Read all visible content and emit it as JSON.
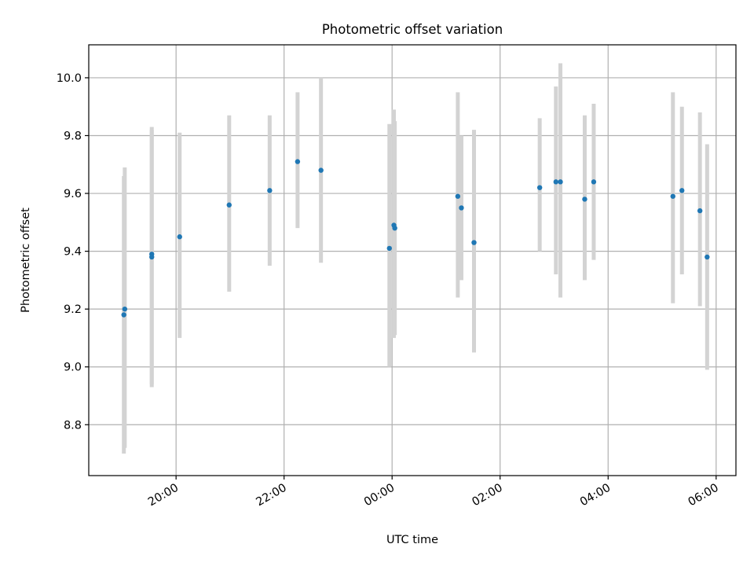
{
  "chart_data": {
    "type": "scatter",
    "title": "Photometric offset variation",
    "xlabel": "UTC time",
    "ylabel": "Photometric offset",
    "x_axis": "time (UTC), evening to next morning",
    "xlim": [
      "18:23",
      "06:22"
    ],
    "ylim": [
      8.624,
      10.114
    ],
    "grid": true,
    "x_ticks": [
      "20:00",
      "22:00",
      "00:00",
      "02:00",
      "04:00",
      "06:00"
    ],
    "y_ticks": [
      "8.8",
      "9.0",
      "9.2",
      "9.4",
      "9.6",
      "9.8",
      "10.0"
    ],
    "colors": {
      "points": "#1f77b4",
      "errorbars": "#d3d3d3",
      "grid": "#b0b0b0"
    },
    "series": [
      {
        "points": [
          {
            "x": "19:03",
            "y": 9.2,
            "err_low": 8.72,
            "err_high": 9.69
          },
          {
            "x": "19:02",
            "y": 9.18,
            "err_low": 8.7,
            "err_high": 9.66
          },
          {
            "x": "19:33",
            "y": 9.39,
            "err_low": 8.94,
            "err_high": 9.83
          },
          {
            "x": "19:33",
            "y": 9.38,
            "err_low": 8.93,
            "err_high": 9.82
          },
          {
            "x": "20:04",
            "y": 9.45,
            "err_low": 9.1,
            "err_high": 9.81
          },
          {
            "x": "20:59",
            "y": 9.56,
            "err_low": 9.26,
            "err_high": 9.87
          },
          {
            "x": "21:44",
            "y": 9.61,
            "err_low": 9.35,
            "err_high": 9.87
          },
          {
            "x": "22:15",
            "y": 9.71,
            "err_low": 9.48,
            "err_high": 9.95
          },
          {
            "x": "22:41",
            "y": 9.68,
            "err_low": 9.36,
            "err_high": 10.0
          },
          {
            "x": "23:57",
            "y": 9.41,
            "err_low": 9.0,
            "err_high": 9.84
          },
          {
            "x": "00:02",
            "y": 9.49,
            "err_low": 9.1,
            "err_high": 9.89
          },
          {
            "x": "00:03",
            "y": 9.48,
            "err_low": 9.11,
            "err_high": 9.85
          },
          {
            "x": "01:13",
            "y": 9.59,
            "err_low": 9.24,
            "err_high": 9.95
          },
          {
            "x": "01:17",
            "y": 9.55,
            "err_low": 9.3,
            "err_high": 9.8
          },
          {
            "x": "01:31",
            "y": 9.43,
            "err_low": 9.05,
            "err_high": 9.82
          },
          {
            "x": "02:44",
            "y": 9.62,
            "err_low": 9.4,
            "err_high": 9.86
          },
          {
            "x": "03:02",
            "y": 9.64,
            "err_low": 9.32,
            "err_high": 9.97
          },
          {
            "x": "03:07",
            "y": 9.64,
            "err_low": 9.24,
            "err_high": 10.05
          },
          {
            "x": "03:34",
            "y": 9.58,
            "err_low": 9.3,
            "err_high": 9.87
          },
          {
            "x": "03:44",
            "y": 9.64,
            "err_low": 9.37,
            "err_high": 9.91
          },
          {
            "x": "05:12",
            "y": 9.59,
            "err_low": 9.22,
            "err_high": 9.95
          },
          {
            "x": "05:22",
            "y": 9.61,
            "err_low": 9.32,
            "err_high": 9.9
          },
          {
            "x": "05:42",
            "y": 9.54,
            "err_low": 9.21,
            "err_high": 9.88
          },
          {
            "x": "05:50",
            "y": 9.38,
            "err_low": 8.99,
            "err_high": 9.77
          }
        ]
      }
    ]
  }
}
